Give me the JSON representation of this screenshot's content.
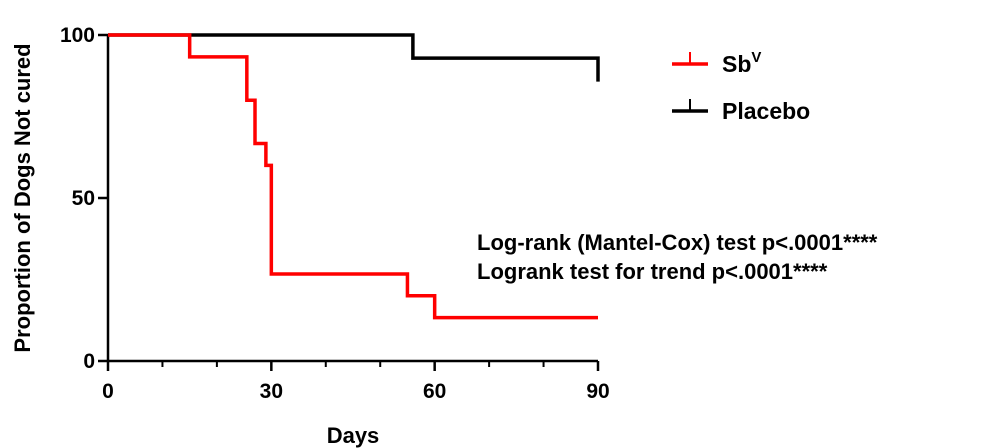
{
  "chart_data": {
    "type": "line",
    "subtype": "kaplan-meier-step",
    "xlabel": "Days",
    "ylabel": "Proportion of Dogs Not cured",
    "xlim": [
      0,
      90
    ],
    "ylim": [
      0,
      100
    ],
    "x_ticks": [
      "0",
      "30",
      "60",
      "90"
    ],
    "y_ticks": [
      "0",
      "50",
      "100"
    ],
    "grid": false,
    "legend_position": "top-right",
    "series": [
      {
        "name": "Sb",
        "name_superscript": "V",
        "color": "#ff0000",
        "x": [
          0,
          15,
          25.5,
          27,
          29,
          30,
          55,
          60,
          90
        ],
        "y": [
          100,
          93.3,
          80,
          66.7,
          60,
          26.7,
          20,
          13.3,
          13.3
        ]
      },
      {
        "name": "Placebo",
        "color": "#000000",
        "x": [
          0,
          56,
          90
        ],
        "y": [
          100,
          92.9,
          85.7
        ]
      }
    ],
    "annotations": [
      "Log-rank (Mantel-Cox) test p<.0001****",
      "Logrank test for trend p<.0001****"
    ]
  }
}
